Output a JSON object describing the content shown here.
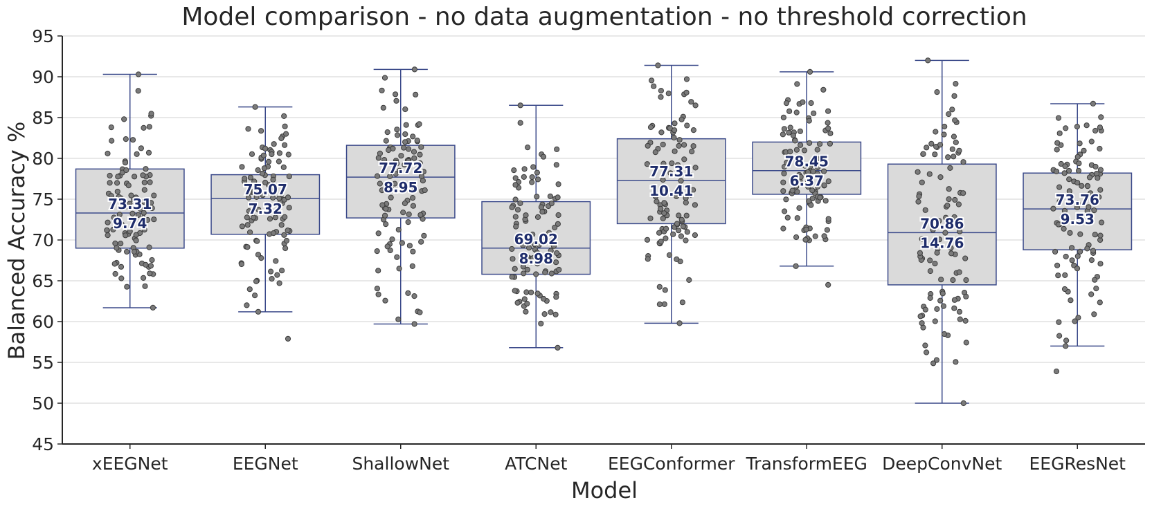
{
  "chart_data": {
    "type": "box",
    "title": "Model comparison - no data augmentation - no threshold correction",
    "xlabel": "Model",
    "ylabel": "Balanced Accuracy %",
    "ylim": [
      45,
      95
    ],
    "yticks": [
      45,
      50,
      55,
      60,
      65,
      70,
      75,
      80,
      85,
      90,
      95
    ],
    "grid": "horizontal",
    "colors": {
      "box_fill": "#dadada",
      "box_edge": "#3b4a8a",
      "points": "#7a7a7a",
      "label": "#1f2d6b"
    },
    "categories": [
      "xEEGNet",
      "EEGNet",
      "ShallowNet",
      "ATCNet",
      "EEGConformer",
      "TransformEEG",
      "DeepConvNet",
      "EEGResNet"
    ],
    "boxes": [
      {
        "model": "xEEGNet",
        "whisker_low": 61.7,
        "q1": 69.0,
        "median": 73.3,
        "q3": 78.7,
        "whisker_high": 90.3,
        "mean_label": "73.31",
        "std_label": "9.74",
        "outliers": []
      },
      {
        "model": "EEGNet",
        "whisker_low": 61.2,
        "q1": 70.7,
        "median": 75.1,
        "q3": 78.0,
        "whisker_high": 86.3,
        "mean_label": "75.07",
        "std_label": "7.32",
        "outliers": [
          57.9
        ]
      },
      {
        "model": "ShallowNet",
        "whisker_low": 59.7,
        "q1": 72.7,
        "median": 77.7,
        "q3": 81.6,
        "whisker_high": 90.9,
        "mean_label": "77.72",
        "std_label": "8.95",
        "outliers": []
      },
      {
        "model": "ATCNet",
        "whisker_low": 56.8,
        "q1": 65.8,
        "median": 69.0,
        "q3": 74.7,
        "whisker_high": 86.5,
        "mean_label": "69.02",
        "std_label": "8.98",
        "outliers": []
      },
      {
        "model": "EEGConformer",
        "whisker_low": 59.8,
        "q1": 72.0,
        "median": 77.3,
        "q3": 82.4,
        "whisker_high": 91.4,
        "mean_label": "77.31",
        "std_label": "10.41",
        "outliers": []
      },
      {
        "model": "TransformEEG",
        "whisker_low": 66.8,
        "q1": 75.6,
        "median": 78.5,
        "q3": 82.0,
        "whisker_high": 90.6,
        "mean_label": "78.45",
        "std_label": "6.37",
        "outliers": [
          64.5
        ]
      },
      {
        "model": "DeepConvNet",
        "whisker_low": 50.0,
        "q1": 64.5,
        "median": 70.9,
        "q3": 79.3,
        "whisker_high": 92.0,
        "mean_label": "70.86",
        "std_label": "14.76",
        "outliers": []
      },
      {
        "model": "EEGResNet",
        "whisker_low": 57.0,
        "q1": 68.8,
        "median": 73.8,
        "q3": 78.2,
        "whisker_high": 86.7,
        "mean_label": "73.76",
        "std_label": "9.53",
        "outliers": [
          53.9
        ]
      }
    ],
    "points_per_model": 100
  }
}
